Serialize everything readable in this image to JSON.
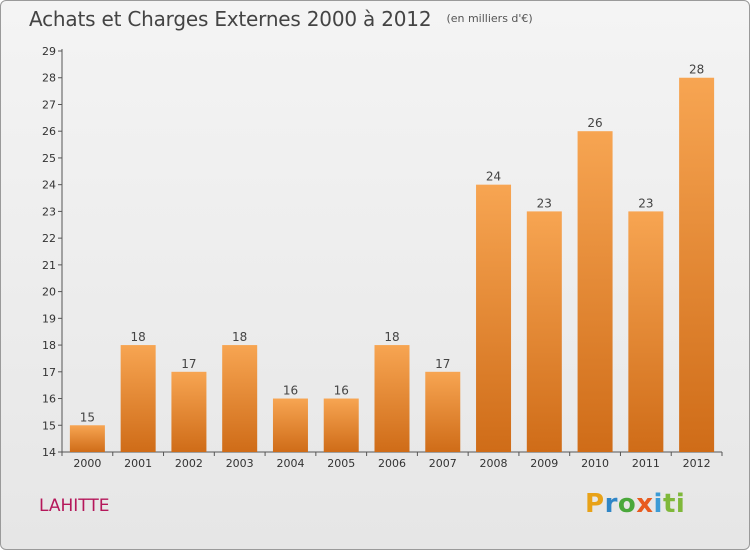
{
  "title": "Achats et Charges Externes 2000 à 2012",
  "unit_note": "(en milliers d'€)",
  "commune": "LAHITTE",
  "logo": {
    "text": "Proxiti",
    "parts": [
      "P",
      "r",
      "o",
      "x",
      "i",
      "ti"
    ]
  },
  "colors": {
    "bar_top": "#f7a552",
    "bar_bottom": "#cf6c18",
    "commune": "#b5175a"
  },
  "chart_data": {
    "type": "bar",
    "title": "Achats et Charges Externes 2000 à 2012",
    "categories": [
      "2000",
      "2001",
      "2002",
      "2003",
      "2004",
      "2005",
      "2006",
      "2007",
      "2008",
      "2009",
      "2010",
      "2011",
      "2012"
    ],
    "values": [
      15,
      18,
      17,
      18,
      16,
      16,
      18,
      17,
      24,
      23,
      26,
      23,
      28
    ],
    "ylim": [
      14,
      29
    ],
    "yticks": [
      14,
      15,
      16,
      17,
      18,
      19,
      20,
      21,
      22,
      23,
      24,
      25,
      26,
      27,
      28,
      29
    ],
    "grid": false,
    "data_labels": true
  }
}
